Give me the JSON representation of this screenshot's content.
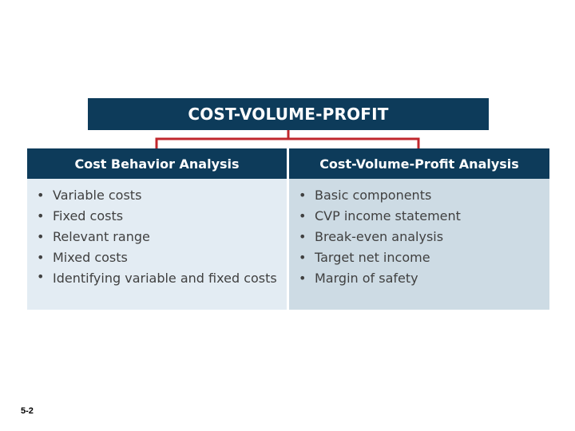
{
  "diagram": {
    "title": "COST-VOLUME-PROFIT",
    "colors": {
      "header_bg": "#0d3b5a",
      "connector": "#c0272d",
      "left_body": "#e3ecf3",
      "right_body": "#cddbe4"
    },
    "columns": [
      {
        "heading": "Cost Behavior Analysis",
        "items": [
          "Variable costs",
          "Fixed costs",
          "Relevant range",
          "Mixed costs",
          "Identifying variable and fixed costs"
        ]
      },
      {
        "heading": "Cost-Volume-Profit Analysis",
        "items": [
          "Basic components",
          "CVP income statement",
          "Break-even analysis",
          "Target net income",
          "Margin of safety"
        ]
      }
    ]
  },
  "slide": {
    "number": "5-2",
    "bullet_glyph": "•"
  }
}
